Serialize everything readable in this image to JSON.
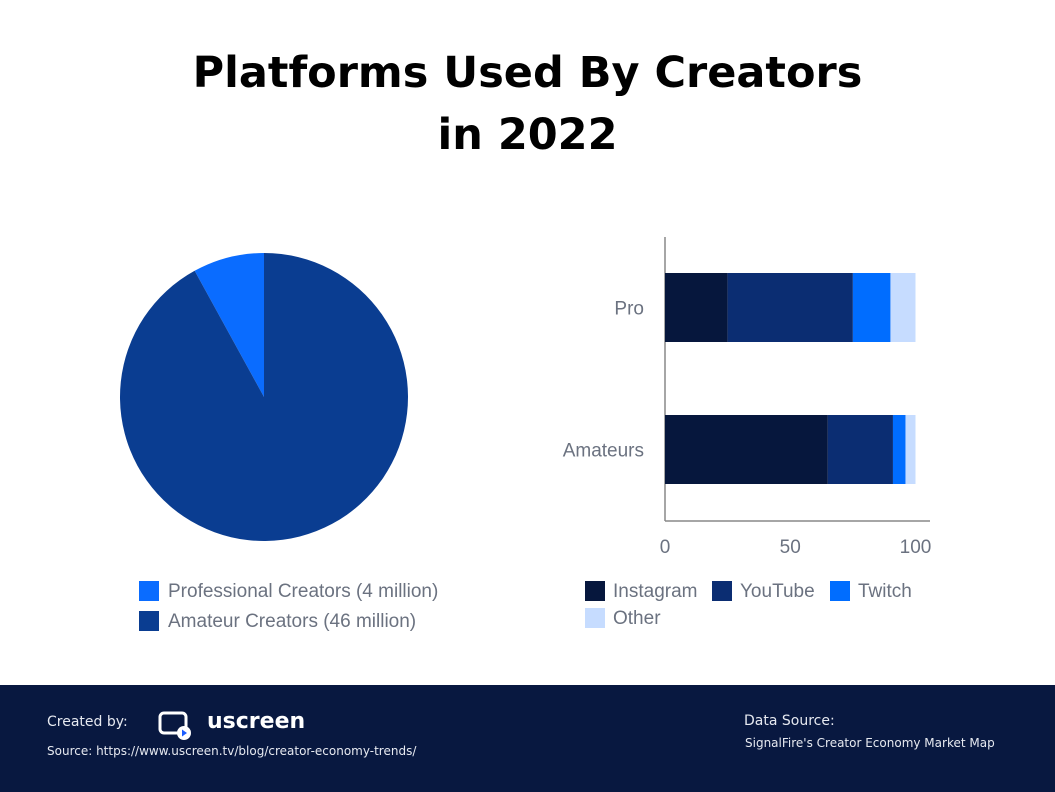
{
  "title": "Platforms Used By Creators in 2022",
  "chart_data": [
    {
      "type": "pie",
      "categories": [
        "Professional Creators (4 million)",
        "Amateur Creators (46 million)"
      ],
      "values": [
        4,
        46
      ],
      "colors": [
        "#0a6cff",
        "#0a3d91"
      ],
      "legend": "bottom"
    },
    {
      "type": "bar",
      "orientation": "horizontal",
      "stacked": true,
      "categories": [
        "Pro",
        "Amateurs"
      ],
      "series": [
        {
          "name": "Instagram",
          "values": [
            25,
            65
          ],
          "color": "#06173d"
        },
        {
          "name": "YouTube",
          "values": [
            50,
            26
          ],
          "color": "#0b2d72"
        },
        {
          "name": "Twitch",
          "values": [
            15,
            5
          ],
          "color": "#006dff"
        },
        {
          "name": "Other",
          "values": [
            10,
            4
          ],
          "color": "#c6dcff"
        }
      ],
      "xlim": [
        0,
        100
      ],
      "xticks": [
        "0",
        "50",
        "100"
      ],
      "grid": false,
      "legend": "bottom"
    }
  ],
  "footer": {
    "created_by": "Created by:",
    "brand": "uscreen",
    "source": "Source: https://www.uscreen.tv/blog/creator-economy-trends/",
    "data_source_label": "Data Source:",
    "data_source": "SignalFire's Creator Economy Market Map"
  }
}
